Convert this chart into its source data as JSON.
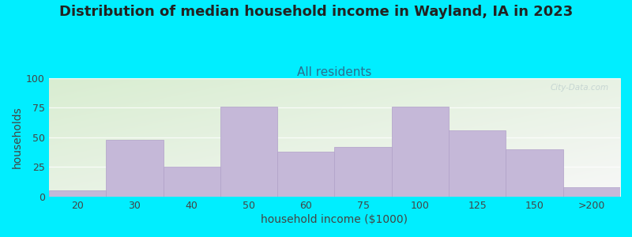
{
  "title": "Distribution of median household income in Wayland, IA in 2023",
  "subtitle": "All residents",
  "xlabel": "household income ($1000)",
  "ylabel": "households",
  "categories": [
    "20",
    "30",
    "40",
    "50",
    "60",
    "75",
    "100",
    "125",
    "150",
    ">200"
  ],
  "values": [
    5,
    48,
    25,
    76,
    38,
    42,
    76,
    56,
    40,
    8
  ],
  "bar_color": "#c5b8d8",
  "bar_edge_color": "#b0a0c8",
  "ylim": [
    0,
    100
  ],
  "yticks": [
    0,
    25,
    50,
    75,
    100
  ],
  "background_outer": "#00eeff",
  "title_fontsize": 13,
  "subtitle_fontsize": 11,
  "subtitle_color": "#2a7090",
  "axis_label_fontsize": 10,
  "tick_fontsize": 9,
  "watermark": "City-Data.com"
}
